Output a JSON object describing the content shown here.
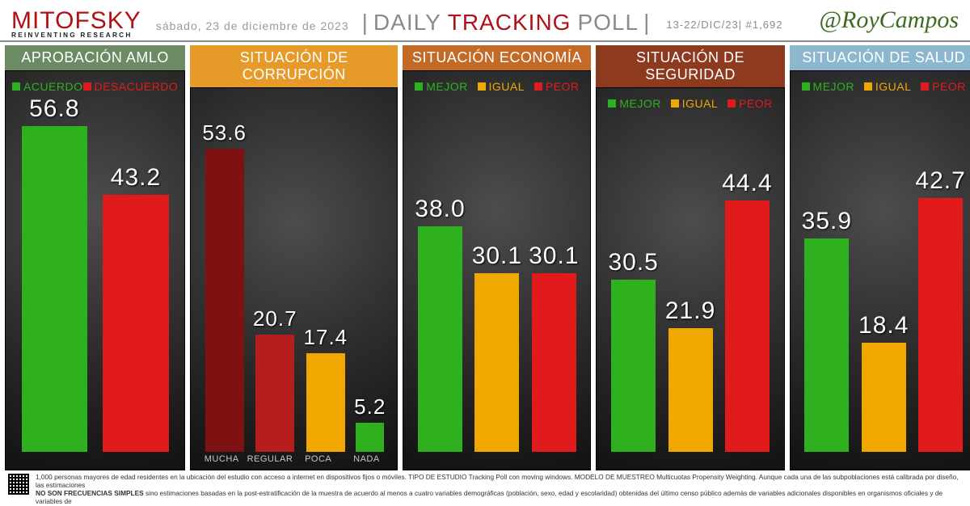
{
  "header": {
    "logo_main": "MITOFSKY",
    "logo_sub": "REINVENTING RESEARCH",
    "date": "sábado, 23 de diciembre de 2023",
    "title_a": "DAILY",
    "title_b": "TRACKING",
    "title_c": "POLL",
    "meta": "13-22/DIC/23| #1,692",
    "handle": "@RoyCampos",
    "logo_color": "#b11116",
    "handle_color": "#3c6b1e"
  },
  "colors": {
    "green": "#2fb11f",
    "yellow": "#f0a800",
    "red": "#e11b1b",
    "dark_red": "#7e1212",
    "mid_red": "#b61d1d"
  },
  "chart": {
    "ymax": 60,
    "value_fontsize": 30,
    "panel_bg_inner": "#4d4d4d",
    "panel_bg_outer": "#121212",
    "value_font_color": "#ffffff",
    "xlabel_color": "#c7c7c7"
  },
  "panels": [
    {
      "title": "APROBACIÓN AMLO",
      "header_bg": "#6c8a64",
      "legend": [
        {
          "label": "ACUERDO",
          "color": "#2fb11f"
        },
        {
          "label": "DESACUERDO",
          "color": "#e11b1b"
        }
      ],
      "bars": [
        {
          "value": 56.8,
          "color": "#2fb11f"
        },
        {
          "value": 43.2,
          "color": "#e11b1b"
        }
      ],
      "xlabels": []
    },
    {
      "title": "SITUACIÓN DE CORRUPCIÓN",
      "header_bg": "#e59a2a",
      "legend": [],
      "bars": [
        {
          "value": 53.6,
          "color": "#7e1212",
          "xlabel": "MUCHA"
        },
        {
          "value": 20.7,
          "color": "#b61d1d",
          "xlabel": "REGULAR"
        },
        {
          "value": 17.4,
          "color": "#f0a800",
          "xlabel": "POCA"
        },
        {
          "value": 5.2,
          "color": "#2fb11f",
          "xlabel": "NADA"
        }
      ],
      "xlabels": [
        "MUCHA",
        "REGULAR",
        "POCA",
        "NADA"
      ],
      "value_fontsize": 26
    },
    {
      "title": "SITUACIÓN ECONOMÍA",
      "header_bg": "#c36a27",
      "legend": [
        {
          "label": "MEJOR",
          "color": "#2fb11f"
        },
        {
          "label": "IGUAL",
          "color": "#f0a800"
        },
        {
          "label": "PEOR",
          "color": "#e11b1b"
        }
      ],
      "bars": [
        {
          "value": 38.0,
          "color": "#2fb11f"
        },
        {
          "value": 30.1,
          "color": "#f0a800"
        },
        {
          "value": 30.1,
          "color": "#e11b1b"
        }
      ],
      "xlabels": []
    },
    {
      "title": "SITUACIÓN DE SEGURIDAD",
      "header_bg": "#8d3a1f",
      "legend": [
        {
          "label": "MEJOR",
          "color": "#2fb11f"
        },
        {
          "label": "IGUAL",
          "color": "#f0a800"
        },
        {
          "label": "PEOR",
          "color": "#e11b1b"
        }
      ],
      "bars": [
        {
          "value": 30.5,
          "color": "#2fb11f"
        },
        {
          "value": 21.9,
          "color": "#f0a800"
        },
        {
          "value": 44.4,
          "color": "#e11b1b"
        }
      ],
      "xlabels": []
    },
    {
      "title": "SITUACIÓN DE SALUD",
      "header_bg": "#8bb7cf",
      "legend": [
        {
          "label": "MEJOR",
          "color": "#2fb11f"
        },
        {
          "label": "IGUAL",
          "color": "#f0a800"
        },
        {
          "label": "PEOR",
          "color": "#e11b1b"
        }
      ],
      "bars": [
        {
          "value": 35.9,
          "color": "#2fb11f"
        },
        {
          "value": 18.4,
          "color": "#f0a800"
        },
        {
          "value": 42.7,
          "color": "#e11b1b"
        }
      ],
      "xlabels": []
    }
  ],
  "footer": {
    "line1": "1,000 personas mayores de edad residentes en la ubicación del estudio con acceso a internet en dispositivos fijos o móviles. TIPO DE ESTUDIO Tracking Poll con moving windows. MODELO DE MUESTREO Multicuotas Propensity Weighting. Aunque cada una de las subpoblaciones está calibrada por diseño, las estimaciones",
    "bold": "NO SON FRECUENCIAS SIMPLES",
    "line2": " sino estimaciones basadas en la post-estratificación de la muestra de acuerdo al menos a cuatro variables demográficas (población, sexo, edad y escolaridad) obtenidas del último censo público además de variables adicionales disponibles en organismos oficiales y de variables de"
  }
}
